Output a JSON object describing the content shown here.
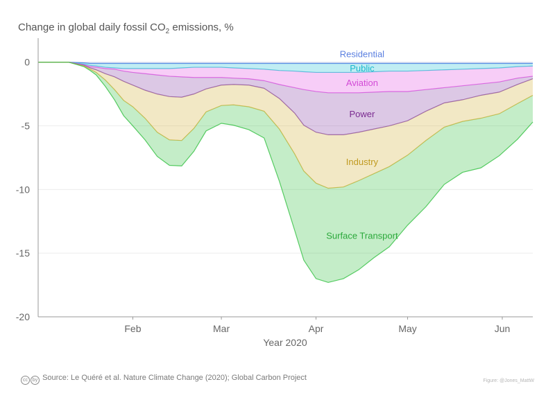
{
  "title": {
    "main": "Change in global daily fossil CO",
    "sub": "2",
    "tail": " emissions, %"
  },
  "footer": {
    "cc_icons": [
      "cc",
      "by"
    ],
    "source": "Source: Le Quéré et al. Nature Climate Change (2020); Global Carbon Project",
    "credit": "Figure: @Jones_MattW"
  },
  "chart_data": {
    "type": "area",
    "stacked": true,
    "xlabel": "Year 2020",
    "ylabel": "",
    "x_range": [
      "2020-01-01",
      "2020-06-11"
    ],
    "ylim": [
      -20,
      2
    ],
    "y_ticks": [
      0,
      -5,
      -10,
      -15,
      -20
    ],
    "x_ticks": [
      {
        "date": "2020-02-01",
        "label": "Feb"
      },
      {
        "date": "2020-03-01",
        "label": "Mar"
      },
      {
        "date": "2020-04-01",
        "label": "Apr"
      },
      {
        "date": "2020-05-01",
        "label": "May"
      },
      {
        "date": "2020-06-01",
        "label": "Jun"
      }
    ],
    "grid": "horizontal",
    "x": [
      "2020-01-01",
      "2020-01-11",
      "2020-01-16",
      "2020-01-18",
      "2020-01-20",
      "2020-01-23",
      "2020-01-26",
      "2020-01-29",
      "2020-02-01",
      "2020-02-05",
      "2020-02-09",
      "2020-02-13",
      "2020-02-17",
      "2020-02-21",
      "2020-02-25",
      "2020-03-01",
      "2020-03-05",
      "2020-03-10",
      "2020-03-15",
      "2020-03-20",
      "2020-03-25",
      "2020-03-28",
      "2020-04-01",
      "2020-04-05",
      "2020-04-10",
      "2020-04-15",
      "2020-04-20",
      "2020-04-25",
      "2020-05-01",
      "2020-05-07",
      "2020-05-13",
      "2020-05-19",
      "2020-05-25",
      "2020-05-31",
      "2020-06-06",
      "2020-06-11"
    ],
    "series": [
      {
        "name": "Residential",
        "color": "#4a78e0",
        "label_color": "#5a7fe0",
        "values": [
          0,
          0,
          -0.05,
          -0.1,
          -0.1,
          -0.1,
          -0.1,
          -0.1,
          -0.1,
          -0.1,
          -0.1,
          -0.1,
          -0.1,
          -0.1,
          -0.1,
          -0.1,
          -0.1,
          -0.1,
          -0.1,
          -0.1,
          -0.1,
          -0.1,
          -0.1,
          -0.1,
          -0.1,
          -0.1,
          -0.1,
          -0.1,
          -0.1,
          -0.1,
          -0.1,
          -0.1,
          -0.1,
          -0.1,
          -0.1,
          -0.1
        ]
      },
      {
        "name": "Public",
        "color": "#2fc4d6",
        "label_color": "#1ab8cc",
        "values": [
          0,
          0,
          -0.1,
          -0.15,
          -0.2,
          -0.3,
          -0.35,
          -0.4,
          -0.4,
          -0.4,
          -0.4,
          -0.4,
          -0.35,
          -0.3,
          -0.3,
          -0.3,
          -0.35,
          -0.4,
          -0.45,
          -0.55,
          -0.6,
          -0.65,
          -0.7,
          -0.7,
          -0.7,
          -0.7,
          -0.65,
          -0.6,
          -0.6,
          -0.55,
          -0.5,
          -0.45,
          -0.4,
          -0.35,
          -0.25,
          -0.2
        ]
      },
      {
        "name": "Aviation",
        "color": "#e35ae6",
        "label_color": "#d24ad6",
        "values": [
          0,
          0,
          -0.05,
          -0.1,
          -0.1,
          -0.1,
          -0.1,
          -0.2,
          -0.3,
          -0.4,
          -0.5,
          -0.6,
          -0.7,
          -0.8,
          -0.8,
          -0.8,
          -0.8,
          -0.8,
          -0.9,
          -1.1,
          -1.3,
          -1.4,
          -1.5,
          -1.6,
          -1.6,
          -1.6,
          -1.6,
          -1.6,
          -1.6,
          -1.5,
          -1.4,
          -1.3,
          -1.2,
          -1.1,
          -0.9,
          -0.8
        ]
      },
      {
        "name": "Power",
        "color": "#8a4aa8",
        "label_color": "#7a2a90",
        "values": [
          0,
          0,
          -0.05,
          -0.1,
          -0.2,
          -0.4,
          -0.6,
          -0.8,
          -1.0,
          -1.3,
          -1.5,
          -1.6,
          -1.6,
          -1.3,
          -0.9,
          -0.6,
          -0.5,
          -0.5,
          -0.6,
          -1.1,
          -2.0,
          -2.8,
          -3.2,
          -3.3,
          -3.3,
          -3.1,
          -2.9,
          -2.7,
          -2.3,
          -1.7,
          -1.2,
          -1.1,
          -0.9,
          -0.8,
          -0.5,
          -0.2
        ]
      },
      {
        "name": "Industry",
        "color": "#d4b340",
        "label_color": "#c09a20",
        "values": [
          0,
          0,
          -0.05,
          -0.1,
          -0.2,
          -0.5,
          -1.0,
          -1.5,
          -1.7,
          -2.2,
          -3.0,
          -3.4,
          -3.4,
          -2.7,
          -1.8,
          -1.6,
          -1.6,
          -1.7,
          -1.8,
          -2.4,
          -3.2,
          -3.6,
          -4.0,
          -4.2,
          -4.1,
          -3.8,
          -3.5,
          -3.2,
          -2.7,
          -2.3,
          -1.9,
          -1.7,
          -1.8,
          -1.7,
          -1.5,
          -1.3
        ]
      },
      {
        "name": "Surface Transport",
        "color": "#3cc34a",
        "label_color": "#2aa83a",
        "values": [
          0,
          0,
          -0.05,
          -0.1,
          -0.2,
          -0.5,
          -0.8,
          -1.2,
          -1.5,
          -1.7,
          -1.9,
          -2.0,
          -2.0,
          -1.8,
          -1.5,
          -1.4,
          -1.6,
          -1.8,
          -2.1,
          -4.1,
          -6.0,
          -7.0,
          -7.5,
          -7.4,
          -7.2,
          -7.0,
          -6.6,
          -6.3,
          -5.5,
          -5.2,
          -4.5,
          -4.0,
          -3.9,
          -3.3,
          -2.8,
          -2.1
        ]
      }
    ]
  }
}
